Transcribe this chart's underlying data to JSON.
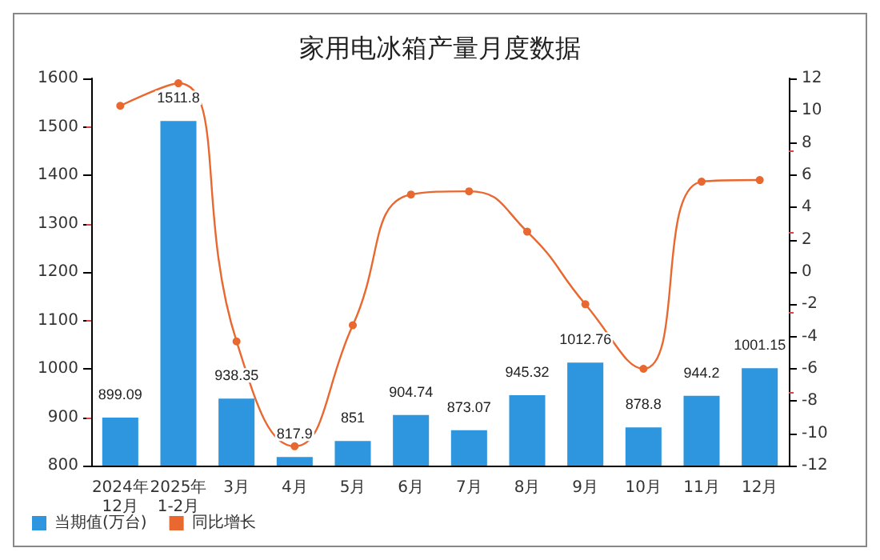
{
  "chart_data": {
    "type": "bar",
    "title": "家用电冰箱产量月度数据",
    "categories": [
      "2024年\n12月",
      "2025年\n1-2月",
      "3月",
      "4月",
      "5月",
      "6月",
      "7月",
      "8月",
      "9月",
      "10月",
      "11月",
      "12月"
    ],
    "series": [
      {
        "name": "当期值(万台)",
        "color": "#2e96de",
        "data_labels": true,
        "values": [
          899.09,
          1511.8,
          938.35,
          817.9,
          851,
          904.74,
          873.07,
          945.32,
          1012.76,
          878.8,
          944.2,
          1001.15
        ]
      },
      {
        "name": "同比增长",
        "type": "line",
        "axis": "y2",
        "color": "#e8682f",
        "marker": "circle",
        "values": [
          10.3,
          11.7,
          -4.3,
          -10.8,
          -3.3,
          4.8,
          5.0,
          2.5,
          -2.0,
          -6.0,
          5.6,
          5.7
        ]
      }
    ],
    "ylim": [
      800,
      1600
    ],
    "yticks": [
      800,
      900,
      1000,
      1100,
      1200,
      1300,
      1400,
      1500,
      1600
    ],
    "y2lim": [
      -12,
      12
    ],
    "y2ticks": [
      -12,
      -10,
      -8,
      -6,
      -4,
      -2,
      0,
      2,
      4,
      6,
      8,
      10,
      12
    ],
    "grid": false,
    "legend": "bottom left"
  }
}
